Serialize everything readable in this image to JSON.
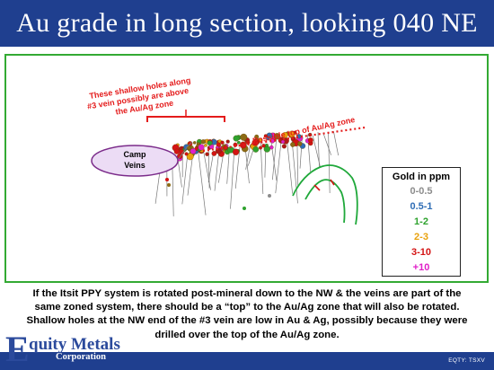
{
  "slide": {
    "title": "Au grade in long section, looking 040 NE"
  },
  "section": {
    "annotation_shallow_holes": [
      "These shallow holes along",
      "#3 vein possibly are above",
      "the Au/Ag zone"
    ],
    "annotation_top": "Possible top of Au/Ag zone",
    "camp_veins": [
      "Camp",
      "Veins"
    ],
    "colors": {
      "annotation": "#e41b1b",
      "camp_fill": "#ecdcf5",
      "fault_lines": "#1fa83a",
      "panel_border": "#33aa33"
    }
  },
  "legend": {
    "title": "Gold in ppm",
    "items": [
      {
        "label": "0-0.5",
        "color": "#8c8c8c"
      },
      {
        "label": "0.5-1",
        "color": "#2f6db5"
      },
      {
        "label": "1-2",
        "color": "#2ea22e"
      },
      {
        "label": "2-3",
        "color": "#e9a20c"
      },
      {
        "label": "3-10",
        "color": "#d41414"
      },
      {
        "label": "+10",
        "color": "#e020c8"
      }
    ]
  },
  "caption": {
    "line1": "If the Itsit PPY system is rotated post-mineral down to the NW & the veins are part of the",
    "line2": "same zoned system, there should be a “top” to the Au/Ag zone that will also be rotated.",
    "line3": "Shallow holes at the NW end of the #3 vein are low in Au & Ag, possibly because they were",
    "line4": "drilled over the top of the Au/Ag zone."
  },
  "logo": {
    "letter": "E",
    "name": "quity Metals",
    "sub": "Corporation"
  },
  "footer": {
    "ticker": "EQTY: TSXV"
  },
  "colors": {
    "header": "#1f3f8f",
    "footer": "#1f3f8f",
    "logo": "#2b4a9c"
  }
}
